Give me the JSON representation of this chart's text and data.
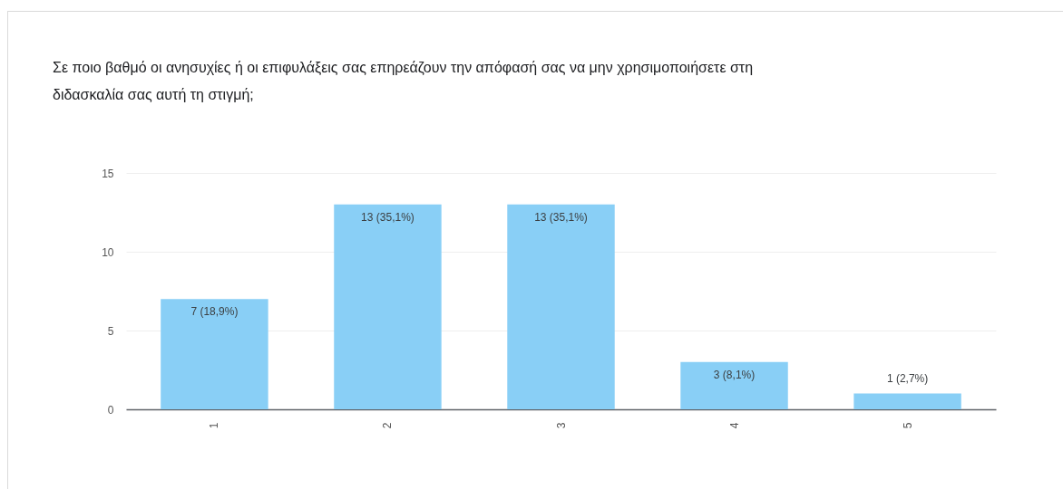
{
  "chart_data": {
    "type": "bar",
    "title": "Σε ποιο βαθμό οι ανησυχίες ή οι επιφυλάξεις σας επηρεάζουν την απόφασή σας να μην χρησιμοποιήσετε στη διδασκαλία σας αυτή τη στιγμή;",
    "categories": [
      "1",
      "2",
      "3",
      "4",
      "5"
    ],
    "values": [
      7,
      13,
      13,
      3,
      1
    ],
    "value_labels": [
      "7 (18,9%)",
      "13 (35,1%)",
      "13 (35,1%)",
      "3 (8,1%)",
      "1 (2,7%)"
    ],
    "color": "#89cff6",
    "ylim": [
      0,
      15
    ],
    "yticks": [
      0,
      5,
      10,
      15
    ],
    "grid": "y"
  }
}
